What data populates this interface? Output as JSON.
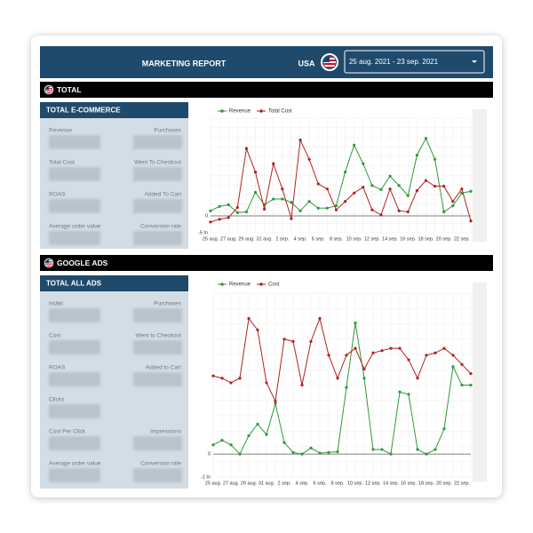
{
  "header": {
    "title": "MARKETING REPORT",
    "country": "USA",
    "date_range": "25 aug. 2021 - 23 sep. 2021"
  },
  "sections": [
    {
      "title": "TOTAL",
      "panel_title": "TOTAL E-COMMERCE",
      "metrics": [
        [
          "Revenue",
          "Purchases"
        ],
        [
          "Total Cost",
          "Went To Checkout"
        ],
        [
          "ROAS",
          "Added To Cart"
        ],
        [
          "Average order value",
          "Conversion rate"
        ]
      ]
    },
    {
      "title": "GOOGLE ADS",
      "panel_title": "TOTAL ALL ADS",
      "metrics": [
        [
          "Intäkt",
          "Purchases"
        ],
        [
          "Cost",
          "Went to Checkout"
        ],
        [
          "ROAS",
          "Added to Cart"
        ],
        [
          "Clicks"
        ],
        [
          "Cost Per Click",
          "Impressions"
        ],
        [
          "Average order value",
          "Conversion rate"
        ]
      ]
    }
  ],
  "chart_data": [
    {
      "type": "line",
      "categories": [
        "25 aug.",
        null,
        "27 aug.",
        null,
        "29 aug.",
        null,
        "31 aug.",
        null,
        "2 sep.",
        null,
        "4 sep.",
        null,
        "6 sep.",
        null,
        "8 sep.",
        null,
        "10 sep.",
        null,
        "12 sep.",
        null,
        "14 sep.",
        null,
        "16 sep.",
        null,
        "18 sep.",
        null,
        "20 sep.",
        null,
        "22 sep.",
        null
      ],
      "series": [
        {
          "name": "Revenue",
          "color": "#2e9a3a",
          "values": [
            1.5,
            2.8,
            3.3,
            1,
            1.2,
            7,
            3.3,
            5,
            5,
            4,
            1.5,
            4.3,
            2.3,
            2.3,
            3,
            13,
            21,
            15.5,
            9,
            7.8,
            11.8,
            9,
            6,
            18,
            23,
            16.8,
            1.2,
            3,
            6.8,
            7.3
          ]
        },
        {
          "name": "Total Cost",
          "color": "#b22222",
          "values": [
            -1.8,
            -1,
            -0.5,
            2.5,
            20,
            13,
            2,
            15.5,
            8,
            -0.8,
            22.5,
            16.8,
            9.5,
            8,
            1.8,
            4.3,
            6.8,
            8.5,
            1.8,
            0.3,
            8,
            1.5,
            1.2,
            7.5,
            10.5,
            8.8,
            8.8,
            4.3,
            8,
            -1.5
          ]
        }
      ],
      "ylim": [
        -5,
        29
      ],
      "yticks": [
        {
          "value": -5,
          "label": "-5 tn"
        },
        0
      ],
      "grid": true
    },
    {
      "type": "line",
      "categories": [
        "25 aug.",
        null,
        "27 aug.",
        null,
        "29 aug.",
        null,
        "31 aug.",
        null,
        "2 sep.",
        null,
        "4 sep.",
        null,
        "6 sep.",
        null,
        "8 sep.",
        null,
        "10 sep.",
        null,
        "12 sep.",
        null,
        "14 sep.",
        null,
        "16 sep.",
        null,
        "18 sep.",
        null,
        "20 sep.",
        null,
        "22 sep.",
        null
      ],
      "series": [
        {
          "name": "Revenue",
          "color": "#2e9a3a",
          "values": [
            0.4,
            0.6,
            0.4,
            0,
            0.8,
            1.3,
            0.85,
            2.2,
            0.5,
            0.07,
            0,
            0.26,
            0.04,
            0.07,
            0.1,
            2.9,
            5.7,
            3.3,
            0.2,
            0.2,
            0,
            2.7,
            2.6,
            0.2,
            0,
            0.2,
            1.1,
            3.8,
            3.0,
            3.0
          ]
        },
        {
          "name": "Cost",
          "color": "#b22222",
          "values": [
            3.4,
            3.3,
            3.1,
            3.3,
            5.9,
            5.4,
            3.1,
            2.3,
            5.0,
            4.9,
            3.0,
            4.9,
            5.9,
            4.3,
            3.3,
            4.3,
            4.6,
            3.7,
            4.4,
            4.5,
            4.6,
            4.6,
            4.1,
            3.3,
            4.3,
            4.4,
            4.6,
            4.3,
            3.9,
            3.5
          ]
        }
      ],
      "ylim": [
        -1,
        7
      ],
      "yticks": [
        {
          "value": -1,
          "label": "-1 tn"
        },
        0
      ],
      "grid": true
    }
  ]
}
